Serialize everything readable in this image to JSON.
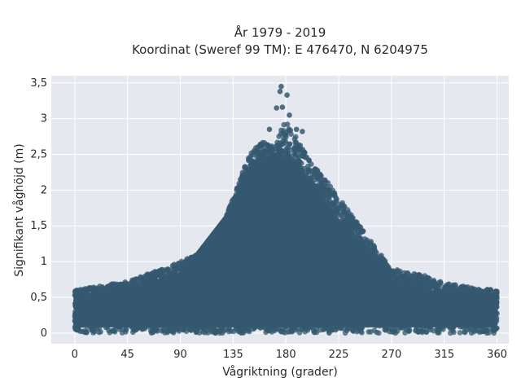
{
  "chart_data": {
    "type": "scatter",
    "title_line1": "År 1979 - 2019",
    "title_line2": "Koordinat (Sweref 99 TM): E 476470, N 6204975",
    "xlabel": "Vågriktning (grader)",
    "ylabel": "Signifikant våghöjd (m)",
    "xlim": [
      -20,
      370
    ],
    "ylim": [
      -0.15,
      3.6
    ],
    "xticks": [
      0,
      45,
      90,
      135,
      180,
      225,
      270,
      315,
      360
    ],
    "xtick_labels": [
      "0",
      "45",
      "90",
      "135",
      "180",
      "225",
      "270",
      "315",
      "360"
    ],
    "yticks": [
      0,
      0.5,
      1,
      1.5,
      2,
      2.5,
      3,
      3.5
    ],
    "ytick_labels": [
      "0",
      "0,5",
      "1",
      "1,5",
      "2",
      "2,5",
      "3",
      "3,5"
    ],
    "grid": true,
    "marker_color": "#34596f",
    "background_color": "#e5e8ef",
    "x_range_observed": [
      0,
      360
    ],
    "upper_envelope": {
      "x": [
        0,
        45,
        90,
        120,
        135,
        150,
        160,
        170,
        180,
        190,
        200,
        225,
        250,
        270,
        300,
        315,
        345,
        360
      ],
      "y": [
        0.6,
        0.72,
        1.0,
        1.2,
        1.9,
        2.55,
        2.7,
        2.6,
        3.0,
        2.7,
        2.45,
        1.9,
        1.35,
        0.9,
        0.8,
        0.7,
        0.62,
        0.6
      ]
    },
    "dense_core_top": {
      "x": [
        0,
        45,
        90,
        135,
        150,
        170,
        180,
        190,
        225,
        270,
        315,
        360
      ],
      "y": [
        0.5,
        0.6,
        0.85,
        1.8,
        2.35,
        2.45,
        2.45,
        2.35,
        1.6,
        0.75,
        0.55,
        0.5
      ]
    },
    "outlier_points": [
      {
        "x": 176,
        "y": 3.45
      },
      {
        "x": 175,
        "y": 3.38
      },
      {
        "x": 181,
        "y": 3.33
      },
      {
        "x": 172,
        "y": 3.15
      },
      {
        "x": 177,
        "y": 3.16
      },
      {
        "x": 183,
        "y": 3.05
      },
      {
        "x": 166,
        "y": 2.85
      },
      {
        "x": 189,
        "y": 2.85
      },
      {
        "x": 194,
        "y": 2.82
      }
    ]
  }
}
